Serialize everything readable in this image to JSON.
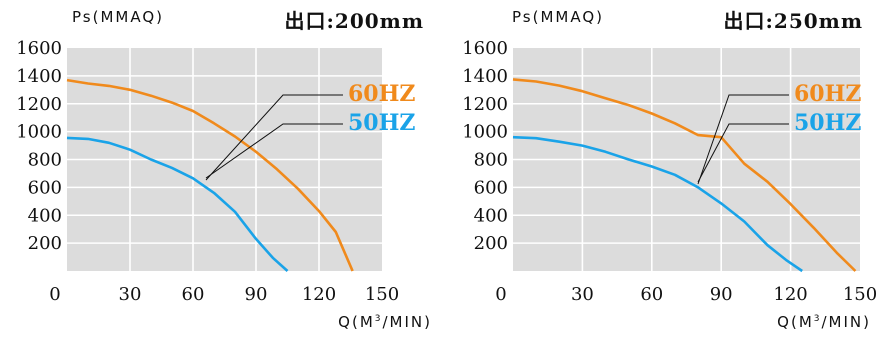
{
  "chart_data": [
    {
      "type": "line",
      "title": "出口:200mm",
      "ylabel": "Ps(MMAQ)",
      "xlabel": "Q(M³/MIN)",
      "xlabel_main": "Q(M",
      "xlabel_sup": "3",
      "xlabel_tail": "/MIN)",
      "xlim": [
        0,
        150
      ],
      "ylim": [
        0,
        1600
      ],
      "xticks": [
        0,
        30,
        60,
        90,
        120,
        150
      ],
      "yticks": [
        200,
        400,
        600,
        800,
        1000,
        1200,
        1400,
        1600
      ],
      "grid": true,
      "series": [
        {
          "name": "60HZ",
          "color": "#f08a1c",
          "x": [
            0,
            10,
            20,
            30,
            40,
            50,
            60,
            70,
            80,
            90,
            100,
            110,
            120,
            128,
            136
          ],
          "y": [
            1370,
            1345,
            1328,
            1300,
            1258,
            1208,
            1148,
            1060,
            965,
            855,
            730,
            590,
            430,
            280,
            0
          ]
        },
        {
          "name": "50HZ",
          "color": "#1aa3e8",
          "x": [
            0,
            10,
            20,
            30,
            40,
            50,
            60,
            70,
            80,
            90,
            98,
            105
          ],
          "y": [
            955,
            948,
            920,
            870,
            800,
            740,
            665,
            560,
            425,
            230,
            95,
            0
          ]
        }
      ]
    },
    {
      "type": "line",
      "title": "出口:250mm",
      "ylabel": "Ps(MMAQ)",
      "xlabel": "Q(M³/MIN)",
      "xlabel_main": "Q(M",
      "xlabel_sup": "3",
      "xlabel_tail": "/MIN)",
      "xlim": [
        0,
        150
      ],
      "ylim": [
        0,
        1600
      ],
      "xticks": [
        0,
        30,
        60,
        90,
        120,
        150
      ],
      "yticks": [
        200,
        400,
        600,
        800,
        1000,
        1200,
        1400,
        1600
      ],
      "grid": true,
      "series": [
        {
          "name": "60HZ",
          "color": "#f08a1c",
          "x": [
            0,
            10,
            20,
            30,
            40,
            50,
            60,
            70,
            80,
            90,
            100,
            110,
            120,
            130,
            140,
            148
          ],
          "y": [
            1375,
            1360,
            1330,
            1290,
            1240,
            1190,
            1130,
            1060,
            975,
            960,
            770,
            640,
            480,
            310,
            130,
            0
          ]
        },
        {
          "name": "50HZ",
          "color": "#1aa3e8",
          "x": [
            0,
            10,
            20,
            30,
            40,
            50,
            60,
            70,
            80,
            90,
            100,
            110,
            118,
            125
          ],
          "y": [
            960,
            953,
            928,
            900,
            855,
            800,
            750,
            690,
            600,
            485,
            355,
            185,
            80,
            0
          ]
        }
      ]
    }
  ]
}
